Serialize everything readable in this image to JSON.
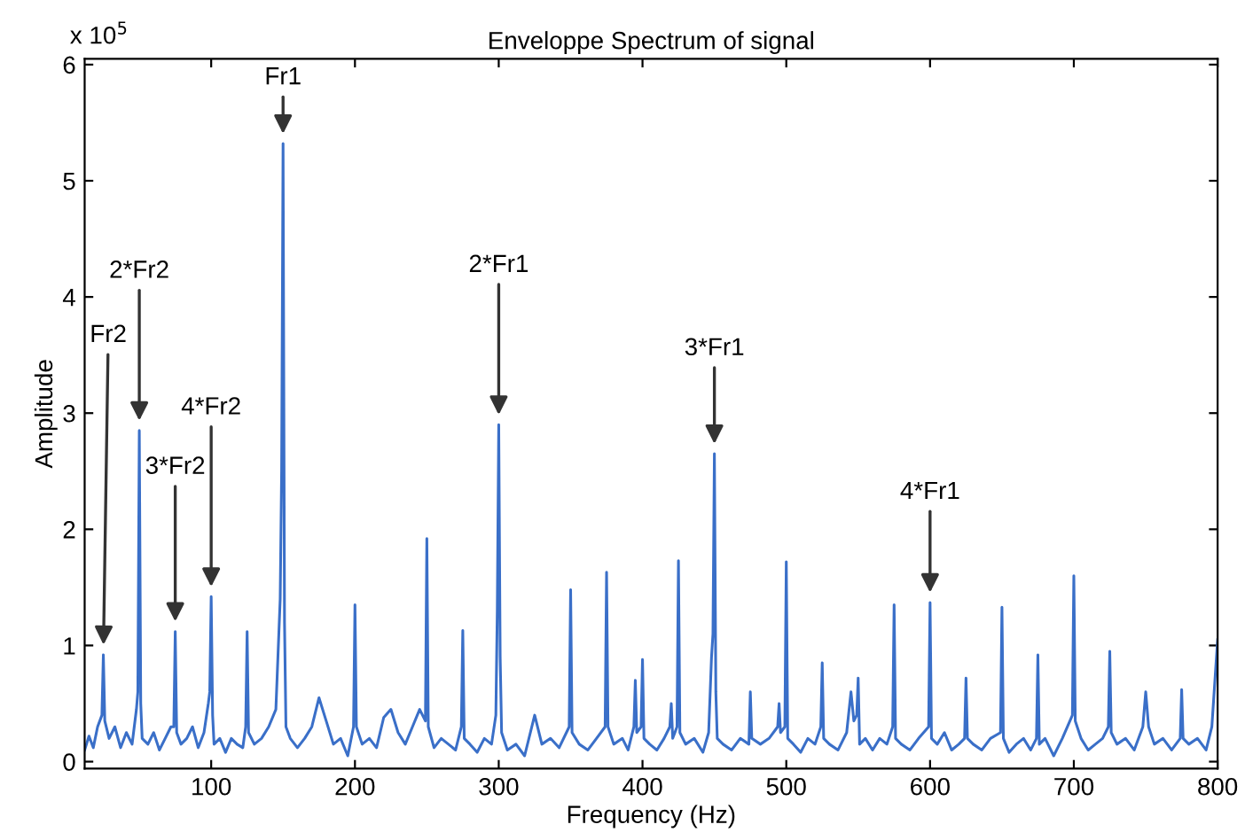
{
  "chart_data": {
    "type": "line",
    "title": "Enveloppe Spectrum of signal",
    "xlabel": "Frequency (Hz)",
    "ylabel": "Amplitude",
    "series": [
      {
        "color": "#3a6fc8",
        "x": [
          12,
          15,
          18,
          21,
          24,
          25,
          26,
          29,
          33,
          37,
          41,
          45,
          48,
          49,
          50,
          51,
          52,
          56,
          60,
          64,
          68,
          72,
          74,
          75,
          76,
          79,
          83,
          87,
          91,
          95,
          98,
          99,
          100,
          101,
          102,
          106,
          110,
          114,
          118,
          122,
          124,
          125,
          126,
          130,
          135,
          140,
          145,
          148,
          149,
          150,
          151,
          152,
          155,
          160,
          165,
          170,
          175,
          180,
          185,
          190,
          195,
          199,
          200,
          201,
          205,
          210,
          215,
          220,
          225,
          230,
          235,
          240,
          245,
          249,
          250,
          251,
          255,
          260,
          265,
          270,
          274,
          275,
          276,
          280,
          285,
          290,
          295,
          298,
          299,
          300,
          301,
          302,
          306,
          312,
          318,
          325,
          330,
          336,
          342,
          349,
          350,
          351,
          356,
          362,
          368,
          374,
          375,
          376,
          380,
          386,
          390,
          394,
          395,
          396,
          399,
          400,
          401,
          405,
          410,
          415,
          419,
          420,
          421,
          424,
          425,
          426,
          430,
          436,
          442,
          446,
          448,
          449,
          450,
          451,
          452,
          456,
          462,
          468,
          474,
          475,
          476,
          482,
          488,
          494,
          495,
          496,
          499,
          500,
          501,
          505,
          510,
          515,
          520,
          524,
          525,
          526,
          530,
          536,
          542,
          545,
          547,
          549,
          550,
          551,
          555,
          560,
          565,
          570,
          574,
          575,
          576,
          580,
          586,
          592,
          599,
          600,
          601,
          605,
          610,
          615,
          620,
          624,
          625,
          626,
          630,
          636,
          642,
          649,
          650,
          651,
          655,
          660,
          665,
          670,
          674,
          675,
          676,
          680,
          686,
          692,
          699,
          700,
          701,
          705,
          710,
          715,
          720,
          724,
          725,
          726,
          730,
          736,
          742,
          748,
          750,
          752,
          756,
          762,
          768,
          774,
          775,
          776,
          780,
          786,
          792,
          796,
          800
        ],
        "values": [
          0.1,
          0.22,
          0.12,
          0.3,
          0.4,
          0.92,
          0.35,
          0.2,
          0.3,
          0.12,
          0.25,
          0.15,
          0.45,
          0.6,
          2.85,
          0.5,
          0.2,
          0.15,
          0.25,
          0.1,
          0.2,
          0.3,
          0.3,
          1.12,
          0.25,
          0.15,
          0.2,
          0.3,
          0.12,
          0.25,
          0.5,
          0.6,
          1.42,
          0.4,
          0.15,
          0.2,
          0.08,
          0.2,
          0.15,
          0.12,
          0.3,
          1.12,
          0.25,
          0.15,
          0.2,
          0.3,
          0.45,
          1.4,
          2.5,
          5.32,
          1.2,
          0.3,
          0.2,
          0.12,
          0.2,
          0.3,
          0.55,
          0.35,
          0.15,
          0.2,
          0.05,
          0.3,
          1.35,
          0.3,
          0.15,
          0.2,
          0.12,
          0.38,
          0.45,
          0.25,
          0.15,
          0.3,
          0.45,
          0.35,
          1.92,
          0.3,
          0.12,
          0.2,
          0.15,
          0.1,
          0.3,
          1.13,
          0.2,
          0.15,
          0.08,
          0.2,
          0.15,
          0.4,
          1.3,
          2.9,
          0.9,
          0.25,
          0.1,
          0.15,
          0.05,
          0.4,
          0.15,
          0.2,
          0.12,
          0.3,
          1.48,
          0.25,
          0.15,
          0.1,
          0.2,
          0.3,
          1.63,
          0.3,
          0.15,
          0.2,
          0.1,
          0.3,
          0.7,
          0.25,
          0.3,
          0.88,
          0.2,
          0.15,
          0.1,
          0.2,
          0.3,
          0.5,
          0.2,
          0.3,
          1.73,
          0.25,
          0.15,
          0.2,
          0.08,
          0.25,
          0.9,
          1.1,
          2.65,
          0.6,
          0.2,
          0.15,
          0.1,
          0.2,
          0.15,
          0.6,
          0.2,
          0.15,
          0.2,
          0.3,
          0.5,
          0.25,
          0.3,
          1.72,
          0.2,
          0.15,
          0.08,
          0.2,
          0.15,
          0.3,
          0.85,
          0.2,
          0.15,
          0.1,
          0.25,
          0.6,
          0.35,
          0.4,
          0.72,
          0.15,
          0.2,
          0.1,
          0.2,
          0.15,
          0.3,
          1.35,
          0.2,
          0.15,
          0.1,
          0.2,
          0.3,
          1.37,
          0.2,
          0.15,
          0.25,
          0.1,
          0.15,
          0.2,
          0.72,
          0.2,
          0.15,
          0.1,
          0.2,
          0.25,
          1.33,
          0.2,
          0.08,
          0.15,
          0.2,
          0.1,
          0.2,
          0.92,
          0.15,
          0.2,
          0.05,
          0.2,
          0.4,
          1.6,
          0.35,
          0.2,
          0.1,
          0.15,
          0.2,
          0.3,
          0.95,
          0.25,
          0.15,
          0.2,
          0.1,
          0.3,
          0.6,
          0.3,
          0.15,
          0.2,
          0.1,
          0.2,
          0.62,
          0.2,
          0.15,
          0.2,
          0.1,
          0.3,
          1.05
        ]
      }
    ],
    "xlim": [
      12,
      800
    ],
    "ylim": [
      -0.06,
      6.05
    ],
    "xticks": [
      100,
      200,
      300,
      400,
      500,
      600,
      700,
      800
    ],
    "yticks": [
      0,
      1,
      2,
      3,
      4,
      5,
      6
    ],
    "grid": false,
    "legend": false,
    "marker": "none",
    "line_style": "solid",
    "annotations": [
      "x 10$^{5}$",
      {
        "text": "Fr2",
        "x": 25,
        "y": 0.92
      },
      {
        "text": "2*Fr2",
        "x": 50,
        "y": 2.85
      },
      {
        "text": "3*Fr2",
        "x": 75,
        "y": 1.12
      },
      {
        "text": "4*Fr2",
        "x": 100,
        "y": 1.42
      },
      {
        "text": "Fr1",
        "x": 150,
        "y": 5.32
      },
      {
        "text": "2*Fr1",
        "x": 300,
        "y": 2.9
      },
      {
        "text": "3*Fr1",
        "x": 450,
        "y": 2.65
      },
      {
        "text": "4*Fr1",
        "x": 600,
        "y": 1.37
      }
    ]
  }
}
